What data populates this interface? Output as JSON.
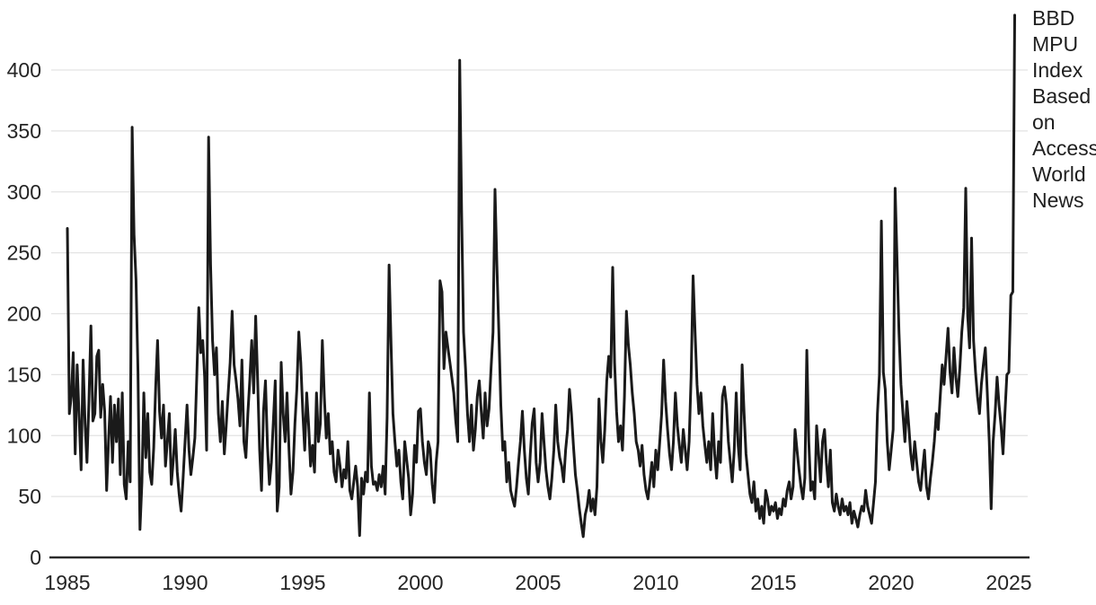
{
  "colors": {
    "background": "#ffffff",
    "series_line": "#1a1a1a",
    "gridline": "#e3e3e3",
    "axis_line": "#2a2a2a",
    "tick_text": "#252525",
    "legend_text": "#1f1f1f"
  },
  "chart_data": {
    "type": "line",
    "title": "",
    "xlabel": "",
    "ylabel": "",
    "legend": "BBD MPU Index Based on Access World News",
    "legend_position": "right",
    "grid": "horizontal",
    "x_start": "1985-01",
    "frequency": "monthly",
    "x_ticks": [
      1985,
      1990,
      1995,
      2000,
      2005,
      2010,
      2015,
      2020,
      2025
    ],
    "y_ticks": [
      0,
      50,
      100,
      150,
      200,
      250,
      300,
      350,
      400
    ],
    "xlim": [
      1985,
      2025.4
    ],
    "ylim": [
      0,
      450
    ],
    "series": [
      {
        "name": "BBD MPU Index Based on Access World News",
        "color": "#1a1a1a",
        "values": [
          270,
          118,
          132,
          168,
          85,
          158,
          115,
          72,
          162,
          110,
          78,
          128,
          190,
          112,
          118,
          165,
          170,
          115,
          142,
          120,
          55,
          95,
          132,
          78,
          125,
          95,
          130,
          68,
          135,
          60,
          48,
          95,
          62,
          353,
          265,
          228,
          152,
          23,
          62,
          135,
          82,
          118,
          70,
          60,
          90,
          140,
          178,
          120,
          98,
          125,
          75,
          95,
          118,
          60,
          80,
          105,
          70,
          52,
          38,
          65,
          95,
          125,
          88,
          68,
          82,
          98,
          150,
          205,
          168,
          178,
          148,
          88,
          345,
          240,
          178,
          150,
          172,
          118,
          95,
          128,
          85,
          108,
          135,
          160,
          202,
          158,
          145,
          130,
          108,
          162,
          95,
          82,
          118,
          145,
          178,
          135,
          198,
          145,
          88,
          55,
          120,
          145,
          92,
          60,
          78,
          112,
          145,
          38,
          58,
          160,
          118,
          95,
          135,
          88,
          52,
          70,
          110,
          138,
          185,
          160,
          120,
          88,
          135,
          108,
          75,
          92,
          70,
          135,
          95,
          110,
          178,
          132,
          98,
          118,
          85,
          95,
          70,
          62,
          88,
          75,
          58,
          72,
          65,
          95,
          55,
          48,
          62,
          75,
          58,
          18,
          65,
          52,
          70,
          62,
          135,
          75,
          60,
          62,
          55,
          68,
          58,
          75,
          52,
          115,
          240,
          175,
          118,
          95,
          75,
          88,
          62,
          48,
          95,
          80,
          65,
          35,
          52,
          92,
          78,
          120,
          122,
          95,
          78,
          68,
          95,
          88,
          60,
          45,
          78,
          95,
          227,
          218,
          155,
          185,
          172,
          160,
          148,
          135,
          112,
          95,
          408,
          285,
          185,
          155,
          118,
          95,
          125,
          88,
          105,
          132,
          145,
          120,
          98,
          135,
          108,
          122,
          155,
          185,
          302,
          240,
          185,
          125,
          88,
          95,
          62,
          78,
          55,
          48,
          42,
          58,
          78,
          95,
          120,
          88,
          65,
          52,
          85,
          110,
          122,
          78,
          62,
          78,
          118,
          95,
          72,
          58,
          48,
          65,
          88,
          125,
          95,
          82,
          75,
          62,
          88,
          105,
          138,
          118,
          92,
          68,
          55,
          40,
          28,
          17,
          35,
          42,
          55,
          38,
          48,
          35,
          58,
          130,
          95,
          78,
          105,
          145,
          165,
          148,
          238,
          160,
          120,
          95,
          108,
          88,
          132,
          202,
          175,
          158,
          135,
          118,
          95,
          88,
          75,
          92,
          68,
          55,
          48,
          62,
          78,
          58,
          88,
          72,
          95,
          118,
          162,
          128,
          105,
          85,
          72,
          95,
          135,
          108,
          92,
          78,
          105,
          88,
          72,
          95,
          148,
          231,
          185,
          142,
          118,
          135,
          108,
          92,
          78,
          95,
          72,
          118,
          85,
          65,
          95,
          78,
          132,
          140,
          125,
          95,
          78,
          62,
          88,
          135,
          92,
          72,
          158,
          118,
          85,
          68,
          52,
          45,
          62,
          38,
          48,
          32,
          42,
          28,
          55,
          48,
          35,
          42,
          38,
          45,
          32,
          40,
          35,
          48,
          42,
          55,
          62,
          48,
          58,
          105,
          88,
          72,
          58,
          48,
          65,
          170,
          95,
          55,
          62,
          48,
          108,
          85,
          62,
          95,
          105,
          78,
          58,
          88,
          45,
          38,
          52,
          42,
          35,
          48,
          38,
          42,
          35,
          45,
          28,
          38,
          32,
          25,
          35,
          42,
          38,
          55,
          42,
          35,
          28,
          45,
          62,
          118,
          150,
          276,
          152,
          138,
          95,
          72,
          88,
          105,
          303,
          245,
          185,
          142,
          118,
          95,
          128,
          108,
          85,
          72,
          95,
          78,
          62,
          55,
          72,
          88,
          58,
          48,
          65,
          78,
          95,
          118,
          105,
          132,
          158,
          142,
          165,
          188,
          152,
          135,
          172,
          148,
          132,
          155,
          185,
          205,
          303,
          198,
          172,
          262,
          178,
          152,
          132,
          118,
          142,
          158,
          172,
          135,
          95,
          40,
          95,
          118,
          148,
          125,
          108,
          85,
          118,
          150,
          152,
          215,
          218,
          445
        ]
      }
    ]
  }
}
